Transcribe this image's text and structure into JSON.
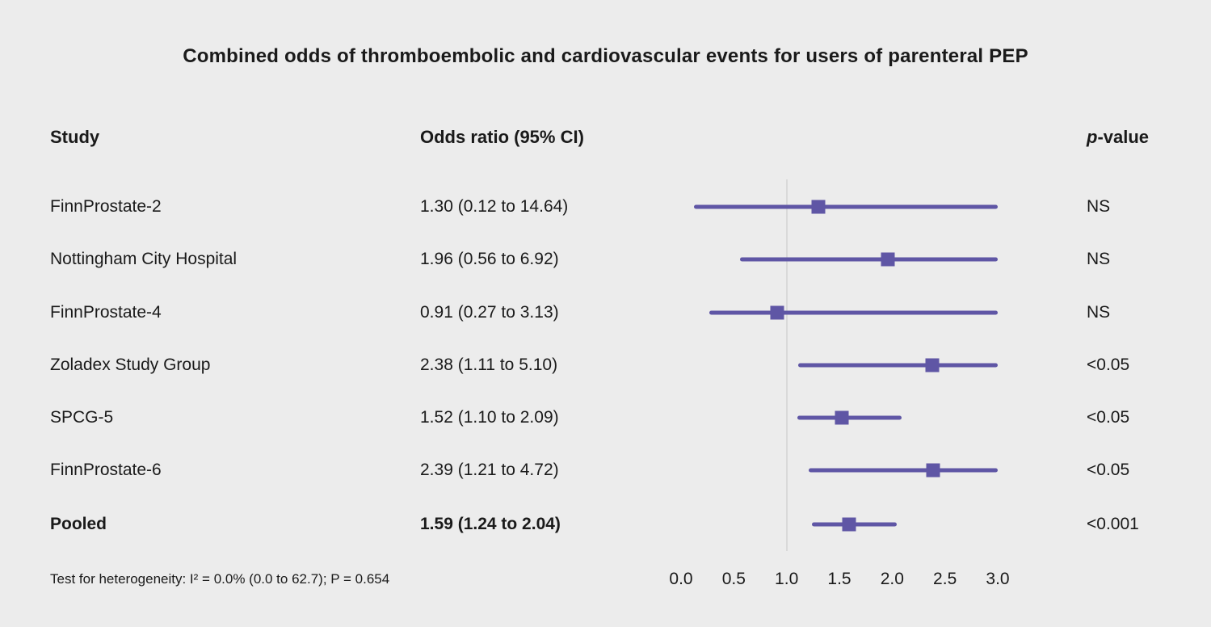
{
  "title": "Combined odds of thromboembolic and cardiovascular events for users of parenteral PEP",
  "columns": {
    "study": "Study",
    "odds_ratio": "Odds ratio (95% CI)",
    "p_italic": "p",
    "p_rest": "-value"
  },
  "footer": "Test for heterogeneity: I² = 0.0% (0.0 to 62.7); P = 0.654",
  "colors": {
    "accent": "#5f56a5",
    "background": "#ececec",
    "reference_line": "#d9d9d9",
    "text": "#1a1a1a"
  },
  "chart_data": {
    "type": "forest",
    "title": "Combined odds of thromboembolic and cardiovascular events for users of parenteral PEP",
    "xlim": [
      0,
      3
    ],
    "x_ticks": [
      "0.0",
      "0.5",
      "1.0",
      "1.5",
      "2.0",
      "2.5",
      "3.0"
    ],
    "reference_value": 1.0,
    "legend": "none",
    "rows": [
      {
        "study": "FinnProstate-2",
        "or_label": "1.30 (0.12 to 14.64)",
        "or": 1.3,
        "ci_low": 0.12,
        "ci_high": 14.64,
        "p": "NS",
        "bold": false
      },
      {
        "study": "Nottingham City Hospital",
        "or_label": "1.96 (0.56 to 6.92)",
        "or": 1.96,
        "ci_low": 0.56,
        "ci_high": 6.92,
        "p": "NS",
        "bold": false
      },
      {
        "study": "FinnProstate-4",
        "or_label": "0.91 (0.27 to 3.13)",
        "or": 0.91,
        "ci_low": 0.27,
        "ci_high": 3.13,
        "p": "NS",
        "bold": false
      },
      {
        "study": "Zoladex Study Group",
        "or_label": "2.38 (1.11 to 5.10)",
        "or": 2.38,
        "ci_low": 1.11,
        "ci_high": 5.1,
        "p": "<0.05",
        "bold": false
      },
      {
        "study": "SPCG-5",
        "or_label": "1.52 (1.10 to 2.09)",
        "or": 1.52,
        "ci_low": 1.1,
        "ci_high": 2.09,
        "p": "<0.05",
        "bold": false
      },
      {
        "study": "FinnProstate-6",
        "or_label": "2.39 (1.21 to 4.72)",
        "or": 2.39,
        "ci_low": 1.21,
        "ci_high": 4.72,
        "p": "<0.05",
        "bold": false
      },
      {
        "study": "Pooled",
        "or_label": "1.59 (1.24 to 2.04)",
        "or": 1.59,
        "ci_low": 1.24,
        "ci_high": 2.04,
        "p": "<0.001",
        "bold": true
      }
    ]
  }
}
